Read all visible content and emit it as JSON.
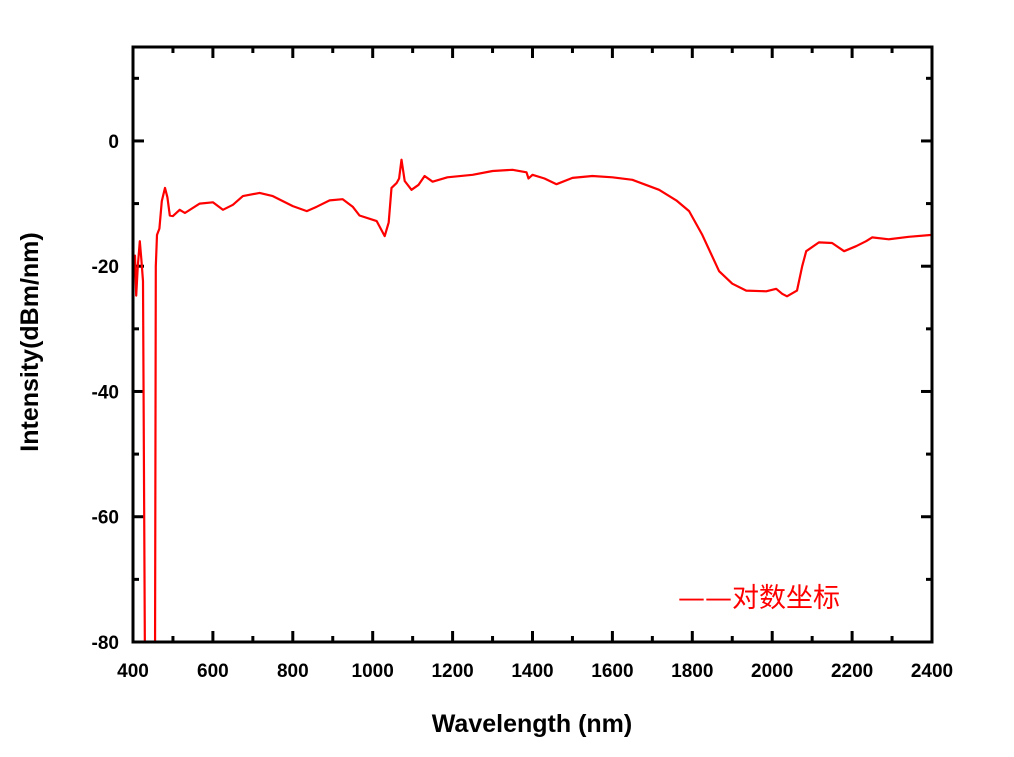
{
  "chart_data": {
    "type": "line",
    "title": "",
    "xlabel": "Wavelength (nm)",
    "ylabel": "Intensity(dBm/nm)",
    "xlim": [
      400,
      2400
    ],
    "ylim": [
      -80,
      15
    ],
    "x_ticks": [
      400,
      600,
      800,
      1000,
      1200,
      1400,
      1600,
      1800,
      2000,
      2200,
      2400
    ],
    "y_ticks": [
      -80,
      -60,
      -40,
      -20,
      0
    ],
    "grid": false,
    "legend_placement": "bottom-right",
    "series": [
      {
        "name": "——对数坐标",
        "color": "#ff0000",
        "points": [
          [
            401,
            -20
          ],
          [
            405,
            -18.3
          ],
          [
            408,
            -24.7
          ],
          [
            412,
            -20
          ],
          [
            417,
            -16
          ],
          [
            421,
            -19
          ],
          [
            425,
            -22.4
          ],
          [
            430,
            -80
          ],
          [
            455,
            -80
          ],
          [
            457,
            -20
          ],
          [
            460,
            -15
          ],
          [
            466,
            -14
          ],
          [
            472,
            -9.6
          ],
          [
            480,
            -7.5
          ],
          [
            486,
            -9
          ],
          [
            492,
            -11.9
          ],
          [
            500,
            -12
          ],
          [
            517,
            -11
          ],
          [
            530,
            -11.5
          ],
          [
            567,
            -10
          ],
          [
            600,
            -9.8
          ],
          [
            625,
            -11
          ],
          [
            650,
            -10.2
          ],
          [
            675,
            -8.8
          ],
          [
            717,
            -8.3
          ],
          [
            750,
            -8.8
          ],
          [
            800,
            -10.4
          ],
          [
            835,
            -11.2
          ],
          [
            860,
            -10.5
          ],
          [
            892,
            -9.5
          ],
          [
            925,
            -9.3
          ],
          [
            950,
            -10.5
          ],
          [
            967,
            -11.9
          ],
          [
            1010,
            -12.8
          ],
          [
            1030,
            -15.2
          ],
          [
            1040,
            -13
          ],
          [
            1047,
            -7.5
          ],
          [
            1060,
            -6.7
          ],
          [
            1066,
            -6
          ],
          [
            1072,
            -3
          ],
          [
            1080,
            -6.4
          ],
          [
            1097,
            -7.8
          ],
          [
            1115,
            -7
          ],
          [
            1130,
            -5.6
          ],
          [
            1150,
            -6.5
          ],
          [
            1187,
            -5.8
          ],
          [
            1250,
            -5.4
          ],
          [
            1300,
            -4.8
          ],
          [
            1350,
            -4.6
          ],
          [
            1385,
            -5
          ],
          [
            1390,
            -6
          ],
          [
            1400,
            -5.4
          ],
          [
            1430,
            -6
          ],
          [
            1460,
            -6.9
          ],
          [
            1500,
            -5.9
          ],
          [
            1550,
            -5.6
          ],
          [
            1600,
            -5.8
          ],
          [
            1650,
            -6.2
          ],
          [
            1717,
            -7.8
          ],
          [
            1760,
            -9.5
          ],
          [
            1792,
            -11.2
          ],
          [
            1825,
            -15
          ],
          [
            1867,
            -20.8
          ],
          [
            1900,
            -22.8
          ],
          [
            1935,
            -23.9
          ],
          [
            1985,
            -24
          ],
          [
            2010,
            -23.6
          ],
          [
            2025,
            -24.4
          ],
          [
            2037,
            -24.8
          ],
          [
            2062,
            -23.9
          ],
          [
            2075,
            -20
          ],
          [
            2085,
            -17.6
          ],
          [
            2117,
            -16.2
          ],
          [
            2150,
            -16.3
          ],
          [
            2180,
            -17.6
          ],
          [
            2210,
            -16.8
          ],
          [
            2235,
            -16
          ],
          [
            2250,
            -15.4
          ],
          [
            2292,
            -15.7
          ],
          [
            2342,
            -15.3
          ],
          [
            2400,
            -15
          ]
        ]
      }
    ]
  }
}
